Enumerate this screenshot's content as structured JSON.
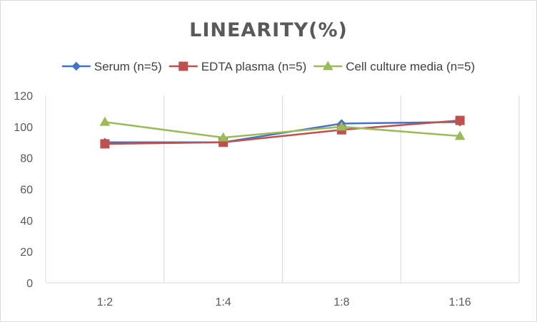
{
  "chart_data": {
    "type": "line",
    "title": "LINEARITY(%)",
    "categories": [
      "1:2",
      "1:4",
      "1:8",
      "1:16"
    ],
    "ylim": [
      0,
      120
    ],
    "yticks": [
      0,
      20,
      40,
      60,
      80,
      100,
      120
    ],
    "grid": "vertical category gridlines",
    "legend_position": "top",
    "series": [
      {
        "name": "Serum (n=5)",
        "color": "#4472c4",
        "marker": "diamond",
        "values": [
          90,
          90,
          102,
          103
        ]
      },
      {
        "name": "EDTA plasma (n=5)",
        "color": "#c0504d",
        "marker": "square",
        "values": [
          89,
          90,
          98,
          104
        ]
      },
      {
        "name": "Cell culture media (n=5)",
        "color": "#9bbb59",
        "marker": "triangle",
        "values": [
          103,
          93,
          100,
          94
        ]
      }
    ]
  }
}
